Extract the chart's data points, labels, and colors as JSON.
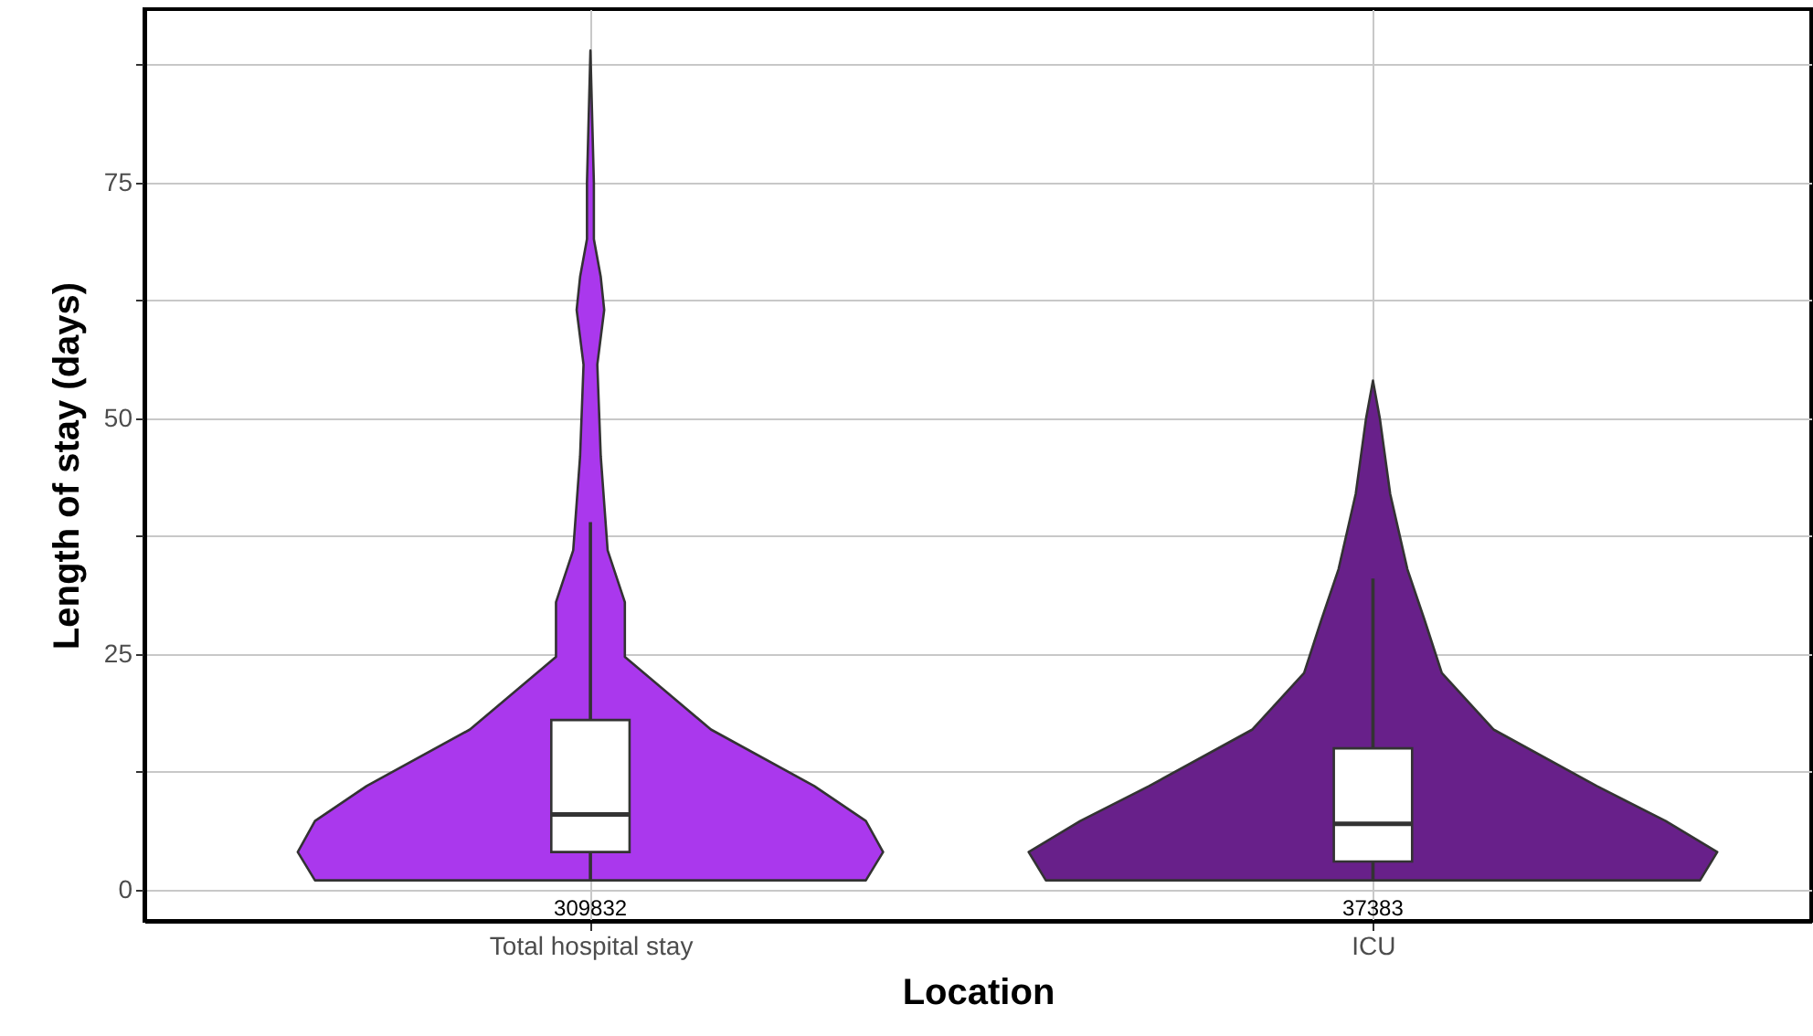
{
  "chart_data": {
    "type": "box",
    "xlabel": "Location",
    "ylabel": "Length of stay (days)",
    "categories": [
      "Total hospital stay",
      "ICU"
    ],
    "boxes": [
      {
        "low": 1,
        "q1": 4,
        "median": 8,
        "q3": 18,
        "high": 39
      },
      {
        "low": 1,
        "q1": 3,
        "median": 7,
        "q3": 15,
        "high": 33
      }
    ],
    "colors": [
      "#ffffff",
      "#ffffff"
    ],
    "annotations": [
      "309832",
      "37383"
    ],
    "ylim": [
      -3.3,
      93.4
    ],
    "yticks": [
      0,
      {
        "value": 12.5,
        "label": null
      },
      25,
      {
        "value": 37.5,
        "label": null
      },
      50,
      {
        "value": 62.5,
        "label": null
      },
      75,
      {
        "value": 87.5,
        "label": null
      }
    ],
    "grid": true
  }
}
